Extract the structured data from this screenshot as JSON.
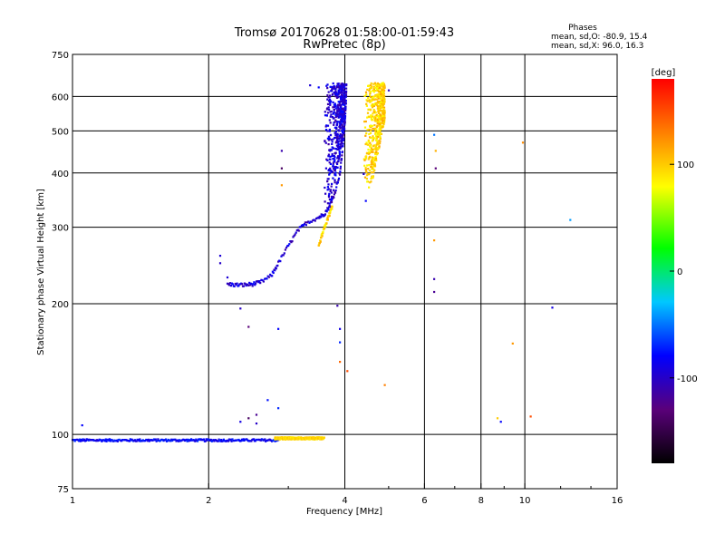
{
  "chart_data": {
    "type": "scatter",
    "title": "Tromsø 20170628 01:58:00-01:59:43",
    "subtitle": "RwPretec (8p)",
    "xlabel": "Frequency [MHz]",
    "ylabel": "Stationary phase Virtual Height [km]",
    "xscale": "log",
    "yscale": "log",
    "xlim": [
      1,
      16
    ],
    "ylim": [
      75,
      750
    ],
    "x_ticks": [
      1,
      2,
      4,
      6,
      8,
      10,
      16
    ],
    "x_tick_labels": [
      "1",
      "2",
      "4",
      "6",
      "8",
      "10",
      "16"
    ],
    "y_ticks": [
      75,
      100,
      200,
      300,
      400,
      500,
      600,
      750
    ],
    "y_tick_labels": [
      "75",
      "100",
      "200",
      "300",
      "400",
      "500",
      "600",
      "750"
    ],
    "grid": true,
    "phase_stats": {
      "header": "Phases",
      "line1": "mean, sd,O: -80.9, 15.4",
      "line2": "mean, sd,X:  96.0, 16.3"
    },
    "colorbar": {
      "label": "[deg]",
      "range": [
        -180,
        180
      ],
      "ticks": [
        100,
        0,
        -100
      ],
      "tick_labels": [
        "100",
        "0",
        "-100"
      ]
    },
    "series": [
      {
        "name": "O-mode E layer trace",
        "phase_mean": -80.9,
        "freq_start": 1.0,
        "freq_end": 2.85,
        "height": 97
      },
      {
        "name": "O-mode F trace lower branch",
        "phase_mean": -95,
        "points": [
          [
            2.2,
            222
          ],
          [
            2.3,
            221
          ],
          [
            2.4,
            221
          ],
          [
            2.5,
            222
          ],
          [
            2.6,
            224
          ],
          [
            2.75,
            232
          ],
          [
            2.85,
            248
          ],
          [
            3.0,
            272
          ],
          [
            3.15,
            295
          ],
          [
            3.3,
            308
          ],
          [
            3.5,
            316
          ],
          [
            3.6,
            322
          ],
          [
            3.7,
            335
          ],
          [
            3.8,
            360
          ],
          [
            3.9,
            400
          ],
          [
            3.95,
            450
          ],
          [
            4.0,
            520
          ],
          [
            4.02,
            580
          ],
          [
            4.03,
            640
          ]
        ]
      },
      {
        "name": "O-mode F trace upper band",
        "phase_mean": -95,
        "freq_start": 3.6,
        "freq_end": 4.0,
        "height_start": 340,
        "height_end": 645
      },
      {
        "name": "X-mode F trace lower branch",
        "phase_mean": 96,
        "points": [
          [
            3.5,
            270
          ],
          [
            3.55,
            285
          ],
          [
            3.6,
            298
          ],
          [
            3.65,
            310
          ],
          [
            3.7,
            322
          ],
          [
            3.75,
            335
          ]
        ]
      },
      {
        "name": "X-mode F trace upper band",
        "phase_mean": 96,
        "freq_start": 4.4,
        "freq_end": 4.9,
        "height_start": 370,
        "height_end": 645
      },
      {
        "name": "X-mode E layer trace",
        "phase_mean": 96,
        "freq_start": 2.8,
        "freq_end": 3.6,
        "height": 98
      },
      {
        "name": "Sparse points",
        "points_with_phase": [
          [
            1.05,
            105,
            -80
          ],
          [
            2.12,
            258,
            -95
          ],
          [
            2.12,
            248,
            -100
          ],
          [
            2.2,
            230,
            -95
          ],
          [
            2.35,
            195,
            -100
          ],
          [
            2.45,
            177,
            -130
          ],
          [
            2.35,
            107,
            -90
          ],
          [
            2.45,
            109,
            -140
          ],
          [
            2.55,
            111,
            -120
          ],
          [
            2.55,
            106,
            -100
          ],
          [
            2.7,
            120,
            -75
          ],
          [
            2.85,
            115,
            -70
          ],
          [
            2.85,
            175,
            -80
          ],
          [
            2.9,
            410,
            -140
          ],
          [
            2.9,
            375,
            120
          ],
          [
            2.9,
            450,
            -110
          ],
          [
            3.35,
            637,
            -95
          ],
          [
            3.5,
            630,
            -80
          ],
          [
            3.85,
            198,
            -110
          ],
          [
            3.9,
            175,
            -90
          ],
          [
            3.9,
            163,
            -70
          ],
          [
            3.9,
            147,
            140
          ],
          [
            4.05,
            140,
            150
          ],
          [
            4.4,
            398,
            -100
          ],
          [
            4.45,
            345,
            -80
          ],
          [
            4.9,
            130,
            130
          ],
          [
            6.3,
            490,
            -50
          ],
          [
            6.35,
            450,
            110
          ],
          [
            6.35,
            410,
            -130
          ],
          [
            6.3,
            280,
            120
          ],
          [
            6.3,
            228,
            -110
          ],
          [
            6.3,
            213,
            -120
          ],
          [
            8.7,
            109,
            100
          ],
          [
            8.85,
            107,
            -80
          ],
          [
            9.4,
            162,
            120
          ],
          [
            9.9,
            470,
            125
          ],
          [
            10.3,
            110,
            150
          ],
          [
            11.5,
            196,
            -90
          ],
          [
            12.6,
            312,
            -40
          ],
          [
            5.0,
            620,
            -100
          ]
        ]
      }
    ]
  }
}
